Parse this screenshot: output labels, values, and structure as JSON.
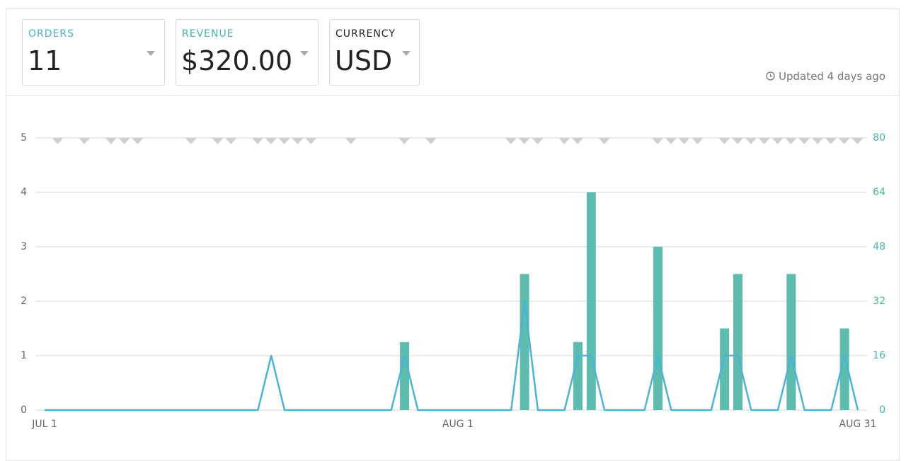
{
  "header": {
    "cards": [
      {
        "label": "ORDERS",
        "value": "11"
      },
      {
        "label": "REVENUE",
        "value": "$320.00"
      },
      {
        "label": "CURRENCY",
        "value": "USD"
      }
    ],
    "updated": "Updated 4 days ago"
  },
  "chart_data": {
    "type": "bar-line",
    "categories": [
      "JUL 1",
      null,
      null,
      null,
      null,
      null,
      null,
      null,
      null,
      null,
      null,
      null,
      null,
      null,
      null,
      null,
      null,
      null,
      null,
      null,
      null,
      null,
      null,
      null,
      null,
      null,
      null,
      null,
      null,
      null,
      null,
      "AUG 1",
      null,
      null,
      null,
      null,
      null,
      null,
      null,
      null,
      null,
      null,
      null,
      null,
      null,
      null,
      null,
      null,
      null,
      null,
      null,
      null,
      null,
      null,
      null,
      null,
      null,
      null,
      null,
      null,
      null,
      "AUG 31"
    ],
    "series": [
      {
        "name": "Orders",
        "type": "line",
        "color": "#4ab4d6",
        "values": [
          0,
          0,
          0,
          0,
          0,
          0,
          0,
          0,
          0,
          0,
          0,
          0,
          0,
          0,
          0,
          0,
          0,
          1,
          0,
          0,
          0,
          0,
          0,
          0,
          0,
          0,
          0,
          1,
          0,
          0,
          0,
          0,
          0,
          0,
          0,
          0,
          2,
          0,
          0,
          0,
          1,
          1,
          0,
          0,
          0,
          0,
          1,
          0,
          0,
          0,
          0,
          1,
          1,
          0,
          0,
          0,
          1,
          0,
          0,
          0,
          1,
          0
        ]
      },
      {
        "name": "Revenue",
        "type": "bar",
        "axis": "y2",
        "color": "#5dbcae",
        "values": [
          0,
          0,
          0,
          0,
          0,
          0,
          0,
          0,
          0,
          0,
          0,
          0,
          0,
          0,
          0,
          0,
          0,
          0,
          0,
          0,
          0,
          0,
          0,
          0,
          0,
          0,
          0,
          20,
          0,
          0,
          0,
          0,
          0,
          0,
          0,
          0,
          40,
          0,
          0,
          0,
          20,
          64,
          0,
          0,
          0,
          0,
          48,
          0,
          0,
          0,
          0,
          24,
          40,
          0,
          0,
          0,
          40,
          0,
          0,
          0,
          24,
          0
        ]
      }
    ],
    "ylim": [
      0,
      5
    ],
    "yticks": [
      0,
      1,
      2,
      3,
      4,
      5
    ],
    "y2lim": [
      0,
      80
    ],
    "y2ticks": [
      0,
      16,
      32,
      48,
      64,
      80
    ],
    "grid": true
  }
}
